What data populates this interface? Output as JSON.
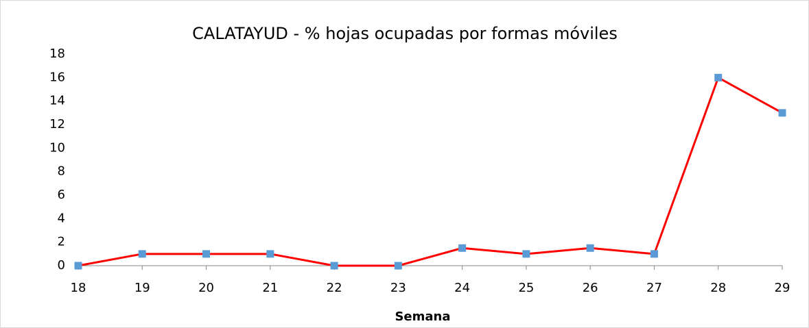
{
  "chart_data": {
    "type": "line",
    "title": "CALATAYUD - % hojas ocupadas por formas móviles",
    "x_label": "Semana",
    "categories": [
      "18",
      "19",
      "20",
      "21",
      "22",
      "23",
      "24",
      "25",
      "26",
      "27",
      "28",
      "29"
    ],
    "series": [
      {
        "color": "#ff0000",
        "marker_color": "#5b9bd5",
        "values": [
          0,
          1,
          1,
          1,
          0,
          0,
          1.5,
          1,
          1.5,
          1,
          16,
          13
        ]
      }
    ],
    "ylim": [
      0,
      18
    ],
    "yticks": [
      0,
      2,
      4,
      6,
      8,
      10,
      12,
      14,
      16,
      18
    ],
    "grid": false
  }
}
